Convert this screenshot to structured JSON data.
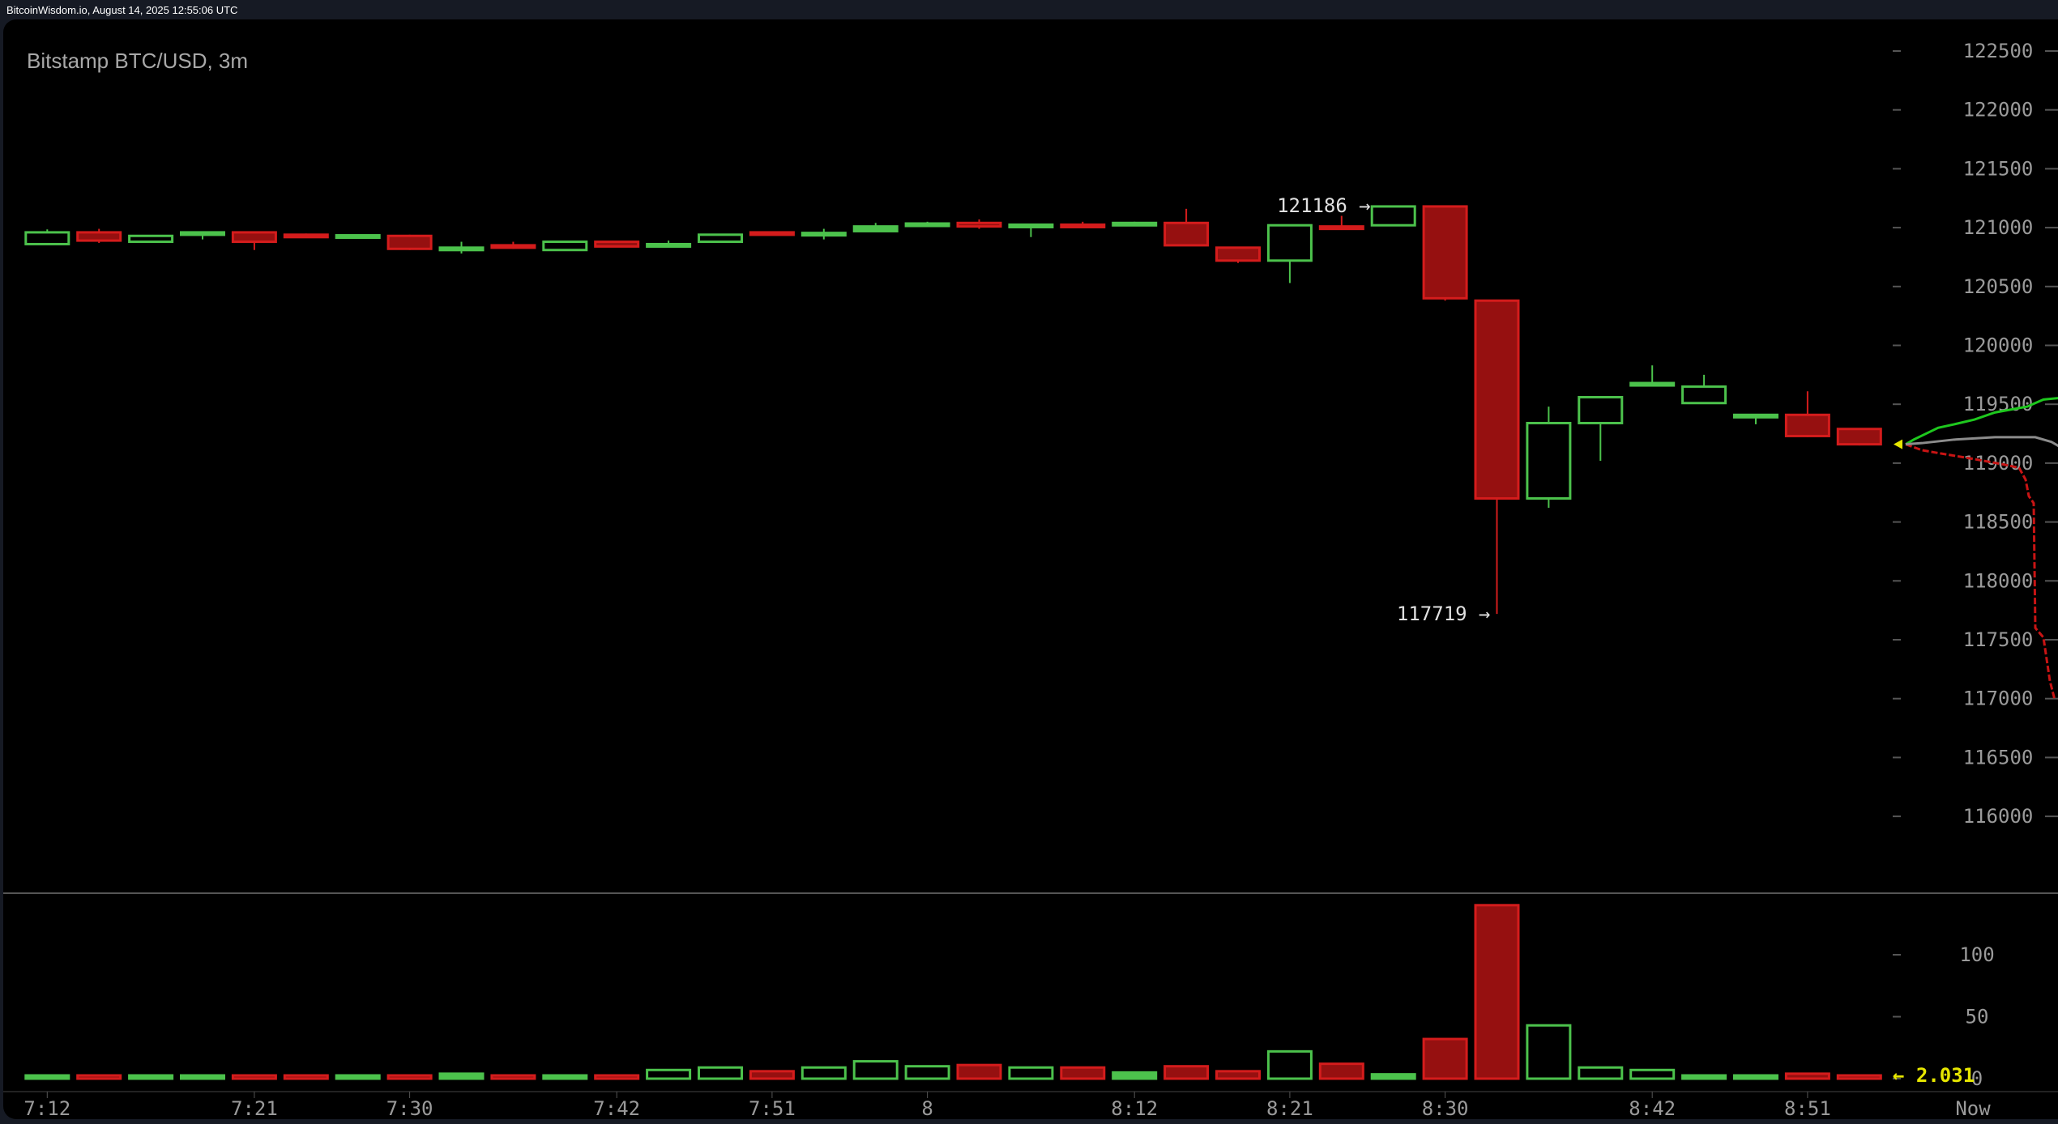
{
  "header": {
    "source_line": "BitcoinWisdom.io, August 14, 2025 12:55:06 UTC"
  },
  "chart_data": {
    "type": "candlestick",
    "title": "Bitstamp BTC/USD, 3m",
    "ylim": [
      115600,
      122700
    ],
    "y_ticks": [
      122500,
      122000,
      121500,
      121000,
      120500,
      120000,
      119500,
      119000,
      118500,
      118000,
      117500,
      117000,
      116500,
      116000
    ],
    "volume_ylim": [
      0,
      145
    ],
    "volume_ticks": [
      100,
      50,
      0
    ],
    "x_labels": [
      {
        "label": "7:12",
        "candle_index": 0
      },
      {
        "label": "7:21",
        "candle_index": 4
      },
      {
        "label": "7:30",
        "candle_index": 7
      },
      {
        "label": "7:42",
        "candle_index": 11
      },
      {
        "label": "7:51",
        "candle_index": 14
      },
      {
        "label": "8",
        "candle_index": 17
      },
      {
        "label": "8:12",
        "candle_index": 21
      },
      {
        "label": "8:21",
        "candle_index": 24
      },
      {
        "label": "8:30",
        "candle_index": 27
      },
      {
        "label": "8:42",
        "candle_index": 31
      },
      {
        "label": "8:51",
        "candle_index": 34
      },
      {
        "label": "Now",
        "candle_index": 38
      }
    ],
    "candles": [
      {
        "o": 120860,
        "h": 120985,
        "l": 120860,
        "c": 120960,
        "v": 2.5
      },
      {
        "o": 120960,
        "h": 120990,
        "l": 120870,
        "c": 120890,
        "v": 1
      },
      {
        "o": 120880,
        "h": 120930,
        "l": 120880,
        "c": 120930,
        "v": 0.5
      },
      {
        "o": 120940,
        "h": 120960,
        "l": 120900,
        "c": 120960,
        "v": 1.5
      },
      {
        "o": 120960,
        "h": 120960,
        "l": 120810,
        "c": 120880,
        "v": 2.5
      },
      {
        "o": 120940,
        "h": 120950,
        "l": 120920,
        "c": 120930,
        "v": 0.5
      },
      {
        "o": 120930,
        "h": 120935,
        "l": 120930,
        "c": 120935,
        "v": 1.5
      },
      {
        "o": 120930,
        "h": 120940,
        "l": 120810,
        "c": 120820,
        "v": 2.5
      },
      {
        "o": 120820,
        "h": 120880,
        "l": 120780,
        "c": 120830,
        "v": 4
      },
      {
        "o": 120850,
        "h": 120880,
        "l": 120820,
        "c": 120830,
        "v": 2.5
      },
      {
        "o": 120810,
        "h": 120880,
        "l": 120810,
        "c": 120880,
        "v": 0.5
      },
      {
        "o": 120880,
        "h": 120880,
        "l": 120840,
        "c": 120840,
        "v": 2.5
      },
      {
        "o": 120840,
        "h": 120890,
        "l": 120840,
        "c": 120860,
        "v": 7
      },
      {
        "o": 120880,
        "h": 120940,
        "l": 120880,
        "c": 120940,
        "v": 9
      },
      {
        "o": 120960,
        "h": 120965,
        "l": 120950,
        "c": 120950,
        "v": 6
      },
      {
        "o": 120940,
        "h": 120990,
        "l": 120900,
        "c": 120955,
        "v": 9
      },
      {
        "o": 120970,
        "h": 121040,
        "l": 120970,
        "c": 121010,
        "v": 14
      },
      {
        "o": 121020,
        "h": 121050,
        "l": 121010,
        "c": 121035,
        "v": 10
      },
      {
        "o": 121040,
        "h": 121070,
        "l": 120990,
        "c": 121010,
        "v": 11
      },
      {
        "o": 121010,
        "h": 121025,
        "l": 120920,
        "c": 121025,
        "v": 9
      },
      {
        "o": 121025,
        "h": 121050,
        "l": 121000,
        "c": 121015,
        "v": 9
      },
      {
        "o": 121025,
        "h": 121050,
        "l": 121025,
        "c": 121040,
        "v": 5
      },
      {
        "o": 121040,
        "h": 121160,
        "l": 120850,
        "c": 120850,
        "v": 10
      },
      {
        "o": 120830,
        "h": 120830,
        "l": 120700,
        "c": 120720,
        "v": 6
      },
      {
        "o": 120720,
        "h": 121020,
        "l": 120530,
        "c": 121020,
        "v": 22
      },
      {
        "o": 121010,
        "h": 121100,
        "l": 120990,
        "c": 121000,
        "v": 12
      },
      {
        "o": 121020,
        "h": 121186,
        "l": 121020,
        "c": 121180,
        "v": 3.5
      },
      {
        "o": 121180,
        "h": 121180,
        "l": 120380,
        "c": 120400,
        "v": 32
      },
      {
        "o": 120380,
        "h": 120380,
        "l": 117719,
        "c": 118700,
        "v": 140
      },
      {
        "o": 118700,
        "h": 119480,
        "l": 118620,
        "c": 119340,
        "v": 43
      },
      {
        "o": 119340,
        "h": 119560,
        "l": 119020,
        "c": 119560,
        "v": 9
      },
      {
        "o": 119660,
        "h": 119830,
        "l": 119650,
        "c": 119680,
        "v": 7
      },
      {
        "o": 119510,
        "h": 119750,
        "l": 119510,
        "c": 119650,
        "v": 2.5
      },
      {
        "o": 119390,
        "h": 119410,
        "l": 119330,
        "c": 119410,
        "v": 0.5
      },
      {
        "o": 119410,
        "h": 119610,
        "l": 119220,
        "c": 119230,
        "v": 4
      },
      {
        "o": 119290,
        "h": 119290,
        "l": 119150,
        "c": 119160,
        "v": 2.031
      }
    ],
    "annotations": {
      "high_label": "121186 →",
      "low_label": "117719 →",
      "last_volume_label": "← 2.031"
    },
    "last_price": 119160,
    "colors": {
      "up": "#4cc24c",
      "down": "#d41c1c",
      "down_fill": "#961010",
      "axis_text": "#9a9a9a",
      "now_marker": "#e6e600",
      "bid_depth": "#1ec81e",
      "ask_depth": "#c81414",
      "mid_line": "#8c8c8c"
    }
  }
}
